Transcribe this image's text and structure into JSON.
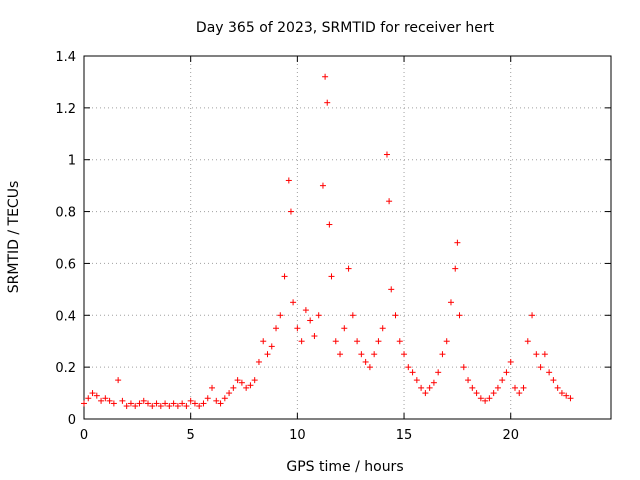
{
  "chart_data": {
    "type": "scatter",
    "title": "Day 365 of 2023, SRMTID for receiver hert",
    "xlabel": "GPS time / hours",
    "ylabel": "SRMTID / TECUs",
    "xlim": [
      0,
      24.7
    ],
    "ylim": [
      0,
      1.4
    ],
    "xticks": [
      0,
      5,
      10,
      15,
      20
    ],
    "xtick_labels": [
      "0",
      "5",
      "10",
      "15",
      "20"
    ],
    "yticks": [
      0,
      0.2,
      0.4,
      0.6,
      0.8,
      1.0,
      1.2,
      1.4
    ],
    "ytick_labels": [
      "0",
      "0.2",
      "0.4",
      "0.6",
      "0.8",
      "1",
      "1.2",
      "1.4"
    ],
    "grid": true,
    "marker": "+",
    "color": "#ff0000",
    "series": [
      {
        "name": "SRMTID",
        "x": [
          0.0,
          0.2,
          0.4,
          0.6,
          0.8,
          1.0,
          1.2,
          1.4,
          1.6,
          1.8,
          2.0,
          2.2,
          2.4,
          2.6,
          2.8,
          3.0,
          3.2,
          3.4,
          3.6,
          3.8,
          4.0,
          4.2,
          4.4,
          4.6,
          4.8,
          5.0,
          5.2,
          5.4,
          5.6,
          5.8,
          6.0,
          6.2,
          6.4,
          6.6,
          6.8,
          7.0,
          7.2,
          7.4,
          7.6,
          7.8,
          8.0,
          8.2,
          8.4,
          8.6,
          8.8,
          9.0,
          9.2,
          9.4,
          9.6,
          9.7,
          9.8,
          10.0,
          10.2,
          10.4,
          10.6,
          10.8,
          11.0,
          11.2,
          11.3,
          11.4,
          11.5,
          11.6,
          11.8,
          12.0,
          12.2,
          12.4,
          12.6,
          12.8,
          13.0,
          13.2,
          13.4,
          13.6,
          13.8,
          14.0,
          14.2,
          14.3,
          14.4,
          14.6,
          14.8,
          15.0,
          15.2,
          15.4,
          15.6,
          15.8,
          16.0,
          16.2,
          16.4,
          16.6,
          16.8,
          17.0,
          17.2,
          17.4,
          17.5,
          17.6,
          17.8,
          18.0,
          18.2,
          18.4,
          18.6,
          18.8,
          19.0,
          19.2,
          19.4,
          19.6,
          19.8,
          20.0,
          20.2,
          20.4,
          20.6,
          20.8,
          21.0,
          21.2,
          21.4,
          21.6,
          21.8,
          22.0,
          22.2,
          22.4,
          22.6,
          22.8
        ],
        "y": [
          0.06,
          0.08,
          0.1,
          0.09,
          0.07,
          0.08,
          0.07,
          0.06,
          0.15,
          0.07,
          0.05,
          0.06,
          0.05,
          0.06,
          0.07,
          0.06,
          0.05,
          0.06,
          0.05,
          0.06,
          0.05,
          0.06,
          0.05,
          0.06,
          0.05,
          0.07,
          0.06,
          0.05,
          0.06,
          0.08,
          0.12,
          0.07,
          0.06,
          0.08,
          0.1,
          0.12,
          0.15,
          0.14,
          0.12,
          0.13,
          0.15,
          0.22,
          0.3,
          0.25,
          0.28,
          0.35,
          0.4,
          0.55,
          0.92,
          0.8,
          0.45,
          0.35,
          0.3,
          0.42,
          0.38,
          0.32,
          0.4,
          0.9,
          1.32,
          1.22,
          0.75,
          0.55,
          0.3,
          0.25,
          0.35,
          0.58,
          0.4,
          0.3,
          0.25,
          0.22,
          0.2,
          0.25,
          0.3,
          0.35,
          1.02,
          0.84,
          0.5,
          0.4,
          0.3,
          0.25,
          0.2,
          0.18,
          0.15,
          0.12,
          0.1,
          0.12,
          0.14,
          0.18,
          0.25,
          0.3,
          0.45,
          0.58,
          0.68,
          0.4,
          0.2,
          0.15,
          0.12,
          0.1,
          0.08,
          0.07,
          0.08,
          0.1,
          0.12,
          0.15,
          0.18,
          0.22,
          0.12,
          0.1,
          0.12,
          0.3,
          0.4,
          0.25,
          0.2,
          0.25,
          0.18,
          0.15,
          0.12,
          0.1,
          0.09,
          0.08
        ]
      }
    ]
  }
}
